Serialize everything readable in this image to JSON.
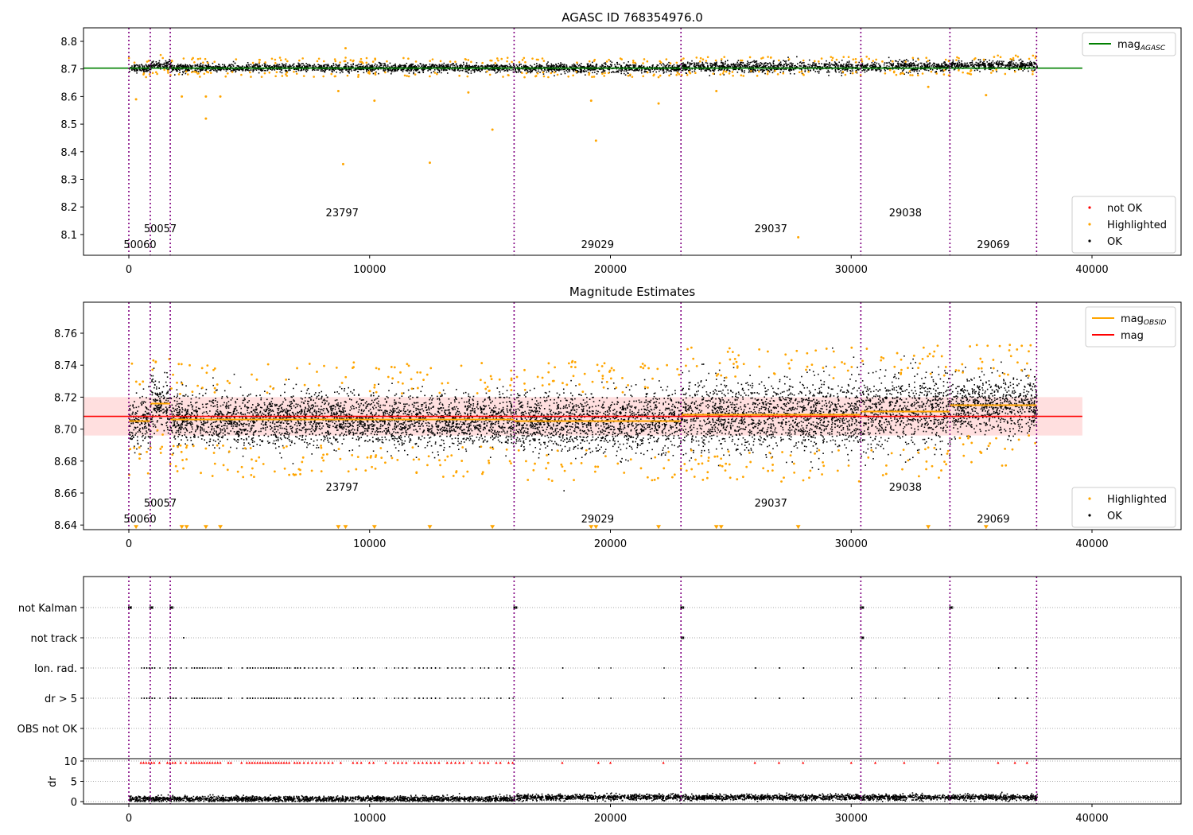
{
  "chart_data": [
    {
      "type": "scatter",
      "title": "AGASC ID 768354976.0",
      "xlim": [
        -1900,
        43700
      ],
      "ylim": [
        8.02,
        8.85
      ],
      "xticks": [
        0,
        10000,
        20000,
        30000,
        40000
      ],
      "yticks": [
        8.1,
        8.2,
        8.3,
        8.4,
        8.5,
        8.6,
        8.7,
        8.8
      ],
      "lines": [
        {
          "name": "mag_AGASC",
          "label_main": "mag",
          "label_sub": "AGASC",
          "value": 8.703,
          "x": [
            0,
            39600
          ],
          "color": "#008000"
        }
      ],
      "legend": [
        {
          "label": "not OK",
          "color": "#ff0000"
        },
        {
          "label": "Highlighted",
          "color": "#ffa500"
        },
        {
          "label": "OK",
          "color": "#000000"
        }
      ]
    },
    {
      "type": "scatter",
      "title": "Magnitude Estimates",
      "xlim": [
        -1900,
        43700
      ],
      "ylim": [
        8.637,
        8.779
      ],
      "xticks": [
        0,
        10000,
        20000,
        30000,
        40000
      ],
      "yticks": [
        8.64,
        8.66,
        8.68,
        8.7,
        8.72,
        8.74,
        8.76
      ],
      "mag": {
        "value": 8.708,
        "band": [
          8.696,
          8.72
        ],
        "x": [
          0,
          39600
        ],
        "color": "#ff0000"
      },
      "legend_lines": [
        {
          "label_main": "mag",
          "label_sub": "OBSID",
          "color": "#ffa500"
        },
        {
          "label_main": "mag",
          "label_sub": "",
          "color": "#ff0000"
        }
      ],
      "legend": [
        {
          "label": "Highlighted",
          "color": "#ffa500"
        },
        {
          "label": "OK",
          "color": "#000000"
        }
      ]
    },
    {
      "type": "scatter",
      "categories": [
        "not Kalman",
        "not track",
        "Ion. rad.",
        "dr > 5",
        "OBS not OK"
      ],
      "ylabel": "dr",
      "dr_ylim": [
        0,
        10
      ],
      "dr_yticks": [
        0,
        5,
        10
      ],
      "xticks": [
        0,
        10000,
        20000,
        30000,
        40000
      ]
    }
  ],
  "obsids": [
    {
      "id": "50060",
      "start": 0,
      "end": 890,
      "mag": 8.705,
      "spread": 0.008,
      "level": 0
    },
    {
      "id": "50057",
      "start": 890,
      "end": 1720,
      "mag": 8.716,
      "spread": 0.008,
      "level": 1
    },
    {
      "id": "23797",
      "start": 1720,
      "end": 16000,
      "mag": 8.706,
      "spread": 0.008,
      "level": 2
    },
    {
      "id": "29029",
      "start": 16000,
      "end": 22930,
      "mag": 8.705,
      "spread": 0.009,
      "level": 0
    },
    {
      "id": "29037",
      "start": 22930,
      "end": 30400,
      "mag": 8.709,
      "spread": 0.011,
      "level": 1
    },
    {
      "id": "29038",
      "start": 30400,
      "end": 34100,
      "mag": 8.711,
      "spread": 0.011,
      "level": 2
    },
    {
      "id": "29069",
      "start": 34100,
      "end": 37700,
      "mag": 8.715,
      "spread": 0.009,
      "level": 0
    }
  ],
  "colors": {
    "ok": "#000000",
    "highlighted": "#ffa500",
    "not_ok": "#ff0000",
    "agasc": "#008000",
    "boundary": "#800080",
    "band": "#ffc0c0"
  }
}
